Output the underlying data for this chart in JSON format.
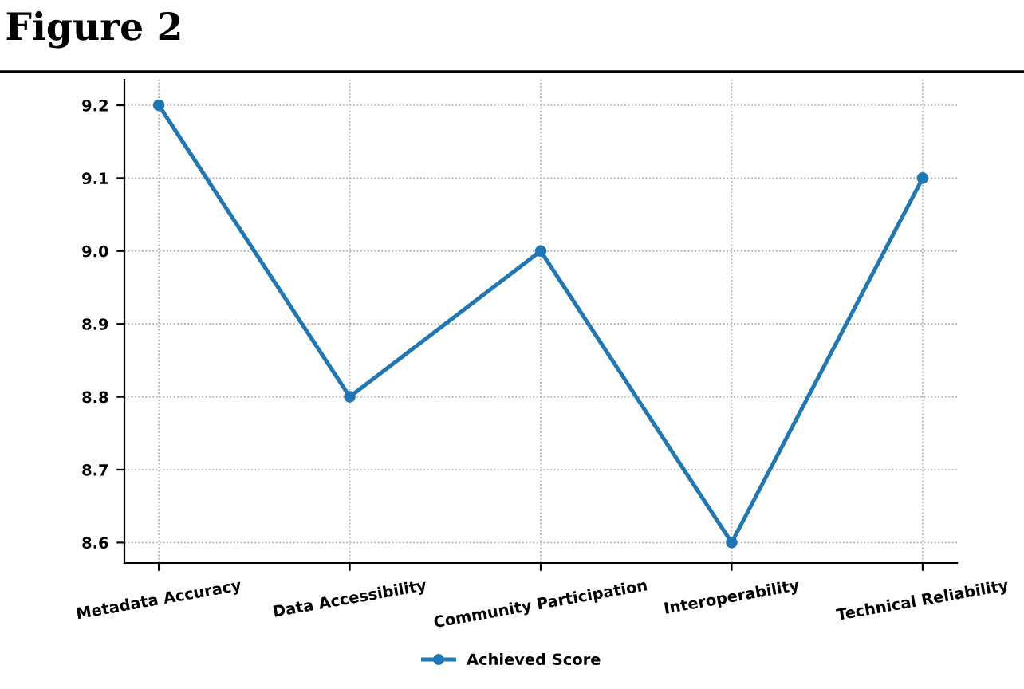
{
  "chart_data": {
    "type": "line",
    "title": "Figure 2",
    "categories": [
      "Metadata Accuracy",
      "Data Accessibility",
      "Community Participation",
      "Interoperability",
      "Technical Reliability"
    ],
    "series": [
      {
        "name": "Achieved Score",
        "color": "#1f77b4",
        "values": [
          9.2,
          8.8,
          9.0,
          8.6,
          9.1
        ]
      }
    ],
    "ylim": [
      8.572,
      9.235
    ],
    "yticks": [
      8.6,
      8.7,
      8.8,
      8.9,
      {
        "value": 9.0,
        "label": "9.0"
      },
      9.1,
      9.2
    ],
    "grid": true,
    "legend": "bottom",
    "marker": "circle",
    "line_style": "solid"
  }
}
